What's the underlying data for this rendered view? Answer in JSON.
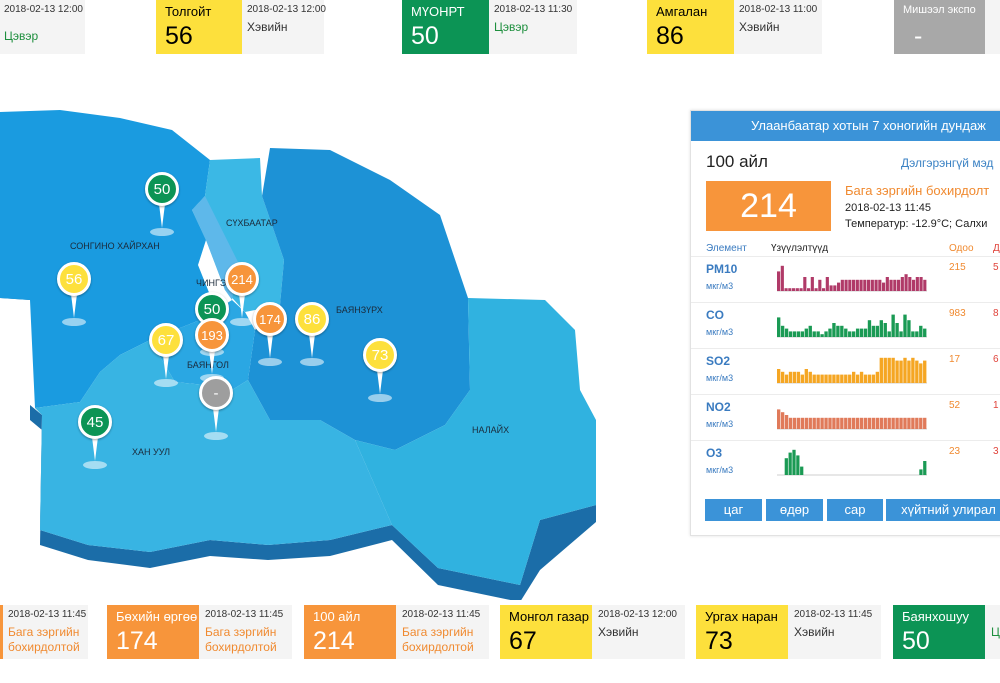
{
  "top_cards": [
    {
      "name": "",
      "value": "",
      "color": "yellow",
      "time": "2018-02-13 12:00",
      "status": "Цэвэр",
      "status_class": "good"
    },
    {
      "name": "Толгойт",
      "value": "56",
      "color": "yellow",
      "time": "2018-02-13 12:00",
      "status": "Хэвийн",
      "status_class": "bad"
    },
    {
      "name": "МҮОНРТ",
      "value": "50",
      "color": "green",
      "time": "2018-02-13 11:30",
      "status": "Цэвэр",
      "status_class": "good"
    },
    {
      "name": "Амгалан",
      "value": "86",
      "color": "yellow",
      "time": "2018-02-13 11:00",
      "status": "Хэвийн",
      "status_class": "bad"
    },
    {
      "name": "Мишээл экспо",
      "value": "-",
      "color": "gray",
      "time": "",
      "status": "",
      "status_class": "bad"
    }
  ],
  "bottom_cards": [
    {
      "name": "",
      "value": "",
      "color": "orange",
      "time": "2018-02-13 11:45",
      "status": "Бага зэргийн бохирдолтой",
      "status_class": "low"
    },
    {
      "name": "Бөхийн өргөө",
      "value": "174",
      "color": "orange",
      "time": "2018-02-13 11:45",
      "status": "Бага зэргийн бохирдолтой",
      "status_class": "low"
    },
    {
      "name": "100 айл",
      "value": "214",
      "color": "orange",
      "time": "2018-02-13 11:45",
      "status": "Бага зэргийн бохирдолтой",
      "status_class": "low"
    },
    {
      "name": "Монгол газар",
      "value": "67",
      "color": "yellow",
      "time": "2018-02-13 12:00",
      "status": "Хэвийн",
      "status_class": "bad"
    },
    {
      "name": "Ургах наран",
      "value": "73",
      "color": "yellow",
      "time": "2018-02-13 11:45",
      "status": "Хэвийн",
      "status_class": "bad"
    },
    {
      "name": "Баянхошуу",
      "value": "50",
      "color": "green",
      "time": "",
      "status": "Ц",
      "status_class": "good"
    }
  ],
  "map": {
    "districts": [
      "СОНГИНО ХАЙРХАН",
      "СҮХБААТАР",
      "ЧИНГЭЛТЭЙ",
      "БАЯНЗҮРХ",
      "БАЯНГОЛ",
      "ХАН УУЛ",
      "НАЛАЙХ"
    ],
    "pins": [
      {
        "value": "50",
        "color": "green"
      },
      {
        "value": "56",
        "color": "yellow"
      },
      {
        "value": "214",
        "color": "orange"
      },
      {
        "value": "50",
        "color": "green"
      },
      {
        "value": "193",
        "color": "orange"
      },
      {
        "value": "67",
        "color": "yellow"
      },
      {
        "value": "174",
        "color": "orange"
      },
      {
        "value": "86",
        "color": "yellow"
      },
      {
        "value": "73",
        "color": "yellow"
      },
      {
        "value": "-",
        "color": "gray"
      },
      {
        "value": "45",
        "color": "green"
      }
    ]
  },
  "panel": {
    "header": "Улаанбаатар хотын 7 хоногийн дундаж",
    "station": "100 айл",
    "more_link": "Дэлгэрэнгүй мэд",
    "aqi": "214",
    "level": "Бага зэргийн бохирдолт",
    "datetime": "2018-02-13 11:45",
    "temperature": "Температур: -12.9°C; Салхи",
    "col_element": "Элемент",
    "col_trend": "Үзүүлэлтүүд",
    "col_current": "Одоо",
    "col_max": "Д",
    "rows": [
      {
        "element": "PM10",
        "unit": "мкг/м3",
        "current": "215",
        "max": "5",
        "bars": [
          70,
          90,
          10,
          10,
          10,
          10,
          10,
          50,
          10,
          50,
          10,
          40,
          10,
          50,
          20,
          20,
          30,
          40,
          40,
          40,
          40,
          40,
          40,
          40,
          40,
          40,
          40,
          40,
          30,
          50,
          40,
          40,
          40,
          50,
          60,
          50,
          40,
          50,
          50,
          40
        ]
      },
      {
        "element": "CO",
        "unit": "мкг/м3",
        "current": "983",
        "max": "8",
        "bars": [
          70,
          40,
          30,
          20,
          20,
          20,
          20,
          30,
          40,
          20,
          20,
          10,
          20,
          30,
          50,
          40,
          40,
          30,
          20,
          20,
          30,
          30,
          30,
          60,
          40,
          40,
          60,
          50,
          20,
          80,
          50,
          20,
          80,
          60,
          20,
          20,
          40,
          30
        ]
      },
      {
        "element": "SO2",
        "unit": "мкг/м3",
        "current": "17",
        "max": "6",
        "bars": [
          50,
          40,
          30,
          40,
          40,
          40,
          30,
          50,
          40,
          30,
          30,
          30,
          30,
          30,
          30,
          30,
          30,
          30,
          30,
          40,
          30,
          40,
          30,
          30,
          30,
          40,
          90,
          90,
          90,
          90,
          80,
          80,
          90,
          80,
          90,
          80,
          70,
          80
        ]
      },
      {
        "element": "NO2",
        "unit": "мкг/м3",
        "current": "52",
        "max": "1",
        "bars": [
          70,
          60,
          50,
          40,
          40,
          40,
          40,
          40,
          40,
          40,
          40,
          40,
          40,
          40,
          40,
          40,
          40,
          40,
          40,
          40,
          40,
          40,
          40,
          40,
          40,
          40,
          40,
          40,
          40,
          40,
          40,
          40,
          40,
          40,
          40,
          40,
          40,
          40
        ]
      },
      {
        "element": "O3",
        "unit": "мкг/м3",
        "current": "23",
        "max": "3",
        "bars": [
          0,
          0,
          60,
          80,
          90,
          70,
          30,
          0,
          0,
          0,
          0,
          0,
          0,
          0,
          0,
          0,
          0,
          0,
          0,
          0,
          0,
          0,
          0,
          0,
          0,
          0,
          0,
          0,
          0,
          0,
          0,
          0,
          0,
          0,
          0,
          0,
          0,
          20,
          50
        ]
      }
    ],
    "buttons": [
      "цаг",
      "өдөр",
      "сар",
      "хүйтний улирал"
    ]
  },
  "colors": {
    "yellow": "#fde03c",
    "green": "#0c9455",
    "orange": "#f7953b",
    "gray": "#a8a8a8",
    "primary": "#3b93d8",
    "pm10": "#b03a68",
    "co": "#1a9a54",
    "so2": "#f5a623",
    "no2": "#e07a5a",
    "o3": "#1a9a54"
  }
}
